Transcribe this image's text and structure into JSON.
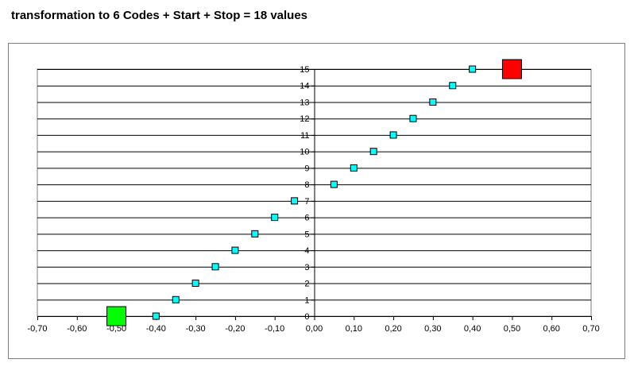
{
  "title": "transformation to 6 Codes + Start + Stop = 18 values",
  "chart_data": {
    "type": "scatter",
    "title": "transformation to 6 Codes + Start + Stop = 18 values",
    "xlabel": "",
    "ylabel": "",
    "xlim": [
      -0.7,
      0.7
    ],
    "ylim": [
      0,
      15
    ],
    "x_ticks": [
      "-0,70",
      "-0,60",
      "-0,50",
      "-0,40",
      "-0,30",
      "-0,20",
      "-0,10",
      "0,00",
      "0,10",
      "0,20",
      "0,30",
      "0,40",
      "0,50",
      "0,60",
      "0,70"
    ],
    "y_ticks": [
      "0",
      "1",
      "2",
      "3",
      "4",
      "5",
      "6",
      "7",
      "8",
      "9",
      "10",
      "11",
      "12",
      "13",
      "14",
      "15"
    ],
    "grid": "horizontal",
    "legend": "none",
    "series": [
      {
        "marker": "small-square",
        "color": "#00ffff",
        "points": [
          {
            "x": -0.4,
            "y": 0
          },
          {
            "x": -0.35,
            "y": 1
          },
          {
            "x": -0.3,
            "y": 2
          },
          {
            "x": -0.25,
            "y": 3
          },
          {
            "x": -0.2,
            "y": 4
          },
          {
            "x": -0.15,
            "y": 5
          },
          {
            "x": -0.1,
            "y": 6
          },
          {
            "x": -0.05,
            "y": 7
          },
          {
            "x": 0.05,
            "y": 8
          },
          {
            "x": 0.1,
            "y": 9
          },
          {
            "x": 0.15,
            "y": 10
          },
          {
            "x": 0.2,
            "y": 11
          },
          {
            "x": 0.25,
            "y": 12
          },
          {
            "x": 0.3,
            "y": 13
          },
          {
            "x": 0.35,
            "y": 14
          },
          {
            "x": 0.4,
            "y": 15
          }
        ]
      },
      {
        "marker": "large-square",
        "color": "#00ff00",
        "points": [
          {
            "x": -0.5,
            "y": 0
          }
        ]
      },
      {
        "marker": "large-square",
        "color": "#ff0000",
        "points": [
          {
            "x": 0.5,
            "y": 15
          }
        ]
      }
    ]
  }
}
